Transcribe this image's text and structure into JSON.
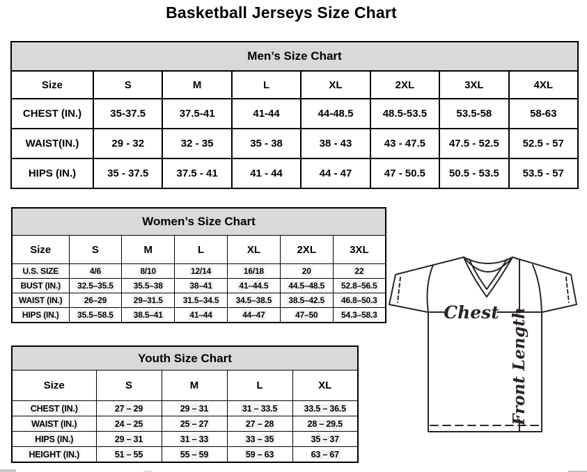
{
  "page": {
    "title": "Basketball Jerseys Size Chart"
  },
  "tables": {
    "men": {
      "title": "Men’s Size Chart",
      "columns": [
        "Size",
        "S",
        "M",
        "L",
        "XL",
        "2XL",
        "3XL",
        "4XL"
      ],
      "rows": [
        {
          "label": "CHEST (IN.)",
          "values": [
            "35-37.5",
            "37.5-41",
            "41-44",
            "44-48.5",
            "48.5-53.5",
            "53.5-58",
            "58-63"
          ]
        },
        {
          "label": "WAIST(IN.)",
          "values": [
            "29 - 32",
            "32 - 35",
            "35 - 38",
            "38 - 43",
            "43 - 47.5",
            "47.5 - 52.5",
            "52.5 - 57"
          ]
        },
        {
          "label": "HIPS (IN.)",
          "values": [
            "35 - 37.5",
            "37.5 - 41",
            "41 - 44",
            "44 - 47",
            "47 - 50.5",
            "50.5 - 53.5",
            "53.5 - 57"
          ]
        }
      ]
    },
    "women": {
      "title": "Women’s Size Chart",
      "columns": [
        "Size",
        "S",
        "M",
        "L",
        "XL",
        "2XL",
        "3XL"
      ],
      "rows": [
        {
          "label": "U.S. SIZE",
          "values": [
            "4/6",
            "8/10",
            "12/14",
            "16/18",
            "20",
            "22"
          ]
        },
        {
          "label": "BUST (IN.)",
          "values": [
            "32.5–35.5",
            "35.5–38",
            "38–41",
            "41–44.5",
            "44.5–48.5",
            "52.8–56.5"
          ]
        },
        {
          "label": "WAIST (IN.)",
          "values": [
            "26–29",
            "29–31.5",
            "31.5–34.5",
            "34.5–38.5",
            "38.5–42.5",
            "46.8–50.3"
          ]
        },
        {
          "label": "HIPS (IN.)",
          "values": [
            "35.5–58.5",
            "38.5–41",
            "41–44",
            "44–47",
            "47–50",
            "54.3–58.3"
          ]
        }
      ]
    },
    "youth": {
      "title": "Youth Size Chart",
      "columns": [
        "Size",
        "S",
        "M",
        "L",
        "XL"
      ],
      "rows": [
        {
          "label": "CHEST (IN.)",
          "values": [
            "27 – 29",
            "29 – 31",
            "31 – 33.5",
            "33.5 – 36.5"
          ]
        },
        {
          "label": "WAIST (IN.)",
          "values": [
            "24 – 25",
            "25 – 27",
            "27 – 28",
            "28 – 29.5"
          ]
        },
        {
          "label": "HIPS (IN.)",
          "values": [
            "29 – 31",
            "31 – 33",
            "33 – 35",
            "35 – 37"
          ]
        },
        {
          "label": "HEIGHT (IN.)",
          "values": [
            "51 – 55",
            "55 – 59",
            "59 – 63",
            "63 – 67"
          ]
        }
      ]
    }
  },
  "diagram": {
    "chest_label": "Chest",
    "front_length_label": "Front Length"
  },
  "colors": {
    "header_bg": "#d9d9d9",
    "table_border": "#000000",
    "diagram_stroke": "#2b2421"
  }
}
